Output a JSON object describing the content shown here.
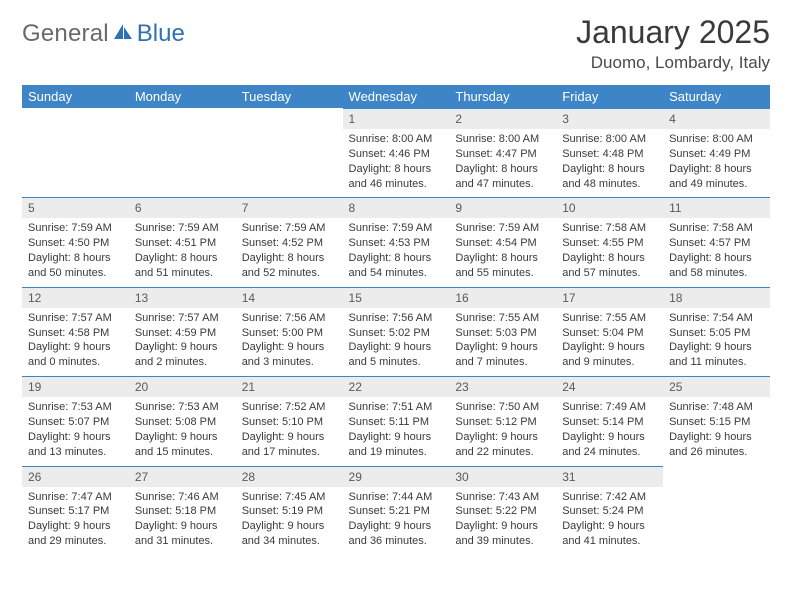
{
  "brand": {
    "part1": "General",
    "part2": "Blue"
  },
  "title": "January 2025",
  "location": "Duomo, Lombardy, Italy",
  "colors": {
    "header_bg": "#3d85c6",
    "header_fg": "#ffffff",
    "daynum_bg": "#ececec",
    "border": "#3d85c6",
    "brand_gray": "#6a6a6a",
    "brand_blue": "#2e72b5"
  },
  "weekdays": [
    "Sunday",
    "Monday",
    "Tuesday",
    "Wednesday",
    "Thursday",
    "Friday",
    "Saturday"
  ],
  "weeks": [
    [
      null,
      null,
      null,
      {
        "n": "1",
        "sr": "8:00 AM",
        "ss": "4:46 PM",
        "dh": "8",
        "dm": "46"
      },
      {
        "n": "2",
        "sr": "8:00 AM",
        "ss": "4:47 PM",
        "dh": "8",
        "dm": "47"
      },
      {
        "n": "3",
        "sr": "8:00 AM",
        "ss": "4:48 PM",
        "dh": "8",
        "dm": "48"
      },
      {
        "n": "4",
        "sr": "8:00 AM",
        "ss": "4:49 PM",
        "dh": "8",
        "dm": "49"
      }
    ],
    [
      {
        "n": "5",
        "sr": "7:59 AM",
        "ss": "4:50 PM",
        "dh": "8",
        "dm": "50"
      },
      {
        "n": "6",
        "sr": "7:59 AM",
        "ss": "4:51 PM",
        "dh": "8",
        "dm": "51"
      },
      {
        "n": "7",
        "sr": "7:59 AM",
        "ss": "4:52 PM",
        "dh": "8",
        "dm": "52"
      },
      {
        "n": "8",
        "sr": "7:59 AM",
        "ss": "4:53 PM",
        "dh": "8",
        "dm": "54"
      },
      {
        "n": "9",
        "sr": "7:59 AM",
        "ss": "4:54 PM",
        "dh": "8",
        "dm": "55"
      },
      {
        "n": "10",
        "sr": "7:58 AM",
        "ss": "4:55 PM",
        "dh": "8",
        "dm": "57"
      },
      {
        "n": "11",
        "sr": "7:58 AM",
        "ss": "4:57 PM",
        "dh": "8",
        "dm": "58"
      }
    ],
    [
      {
        "n": "12",
        "sr": "7:57 AM",
        "ss": "4:58 PM",
        "dh": "9",
        "dm": "0"
      },
      {
        "n": "13",
        "sr": "7:57 AM",
        "ss": "4:59 PM",
        "dh": "9",
        "dm": "2"
      },
      {
        "n": "14",
        "sr": "7:56 AM",
        "ss": "5:00 PM",
        "dh": "9",
        "dm": "3"
      },
      {
        "n": "15",
        "sr": "7:56 AM",
        "ss": "5:02 PM",
        "dh": "9",
        "dm": "5"
      },
      {
        "n": "16",
        "sr": "7:55 AM",
        "ss": "5:03 PM",
        "dh": "9",
        "dm": "7"
      },
      {
        "n": "17",
        "sr": "7:55 AM",
        "ss": "5:04 PM",
        "dh": "9",
        "dm": "9"
      },
      {
        "n": "18",
        "sr": "7:54 AM",
        "ss": "5:05 PM",
        "dh": "9",
        "dm": "11"
      }
    ],
    [
      {
        "n": "19",
        "sr": "7:53 AM",
        "ss": "5:07 PM",
        "dh": "9",
        "dm": "13"
      },
      {
        "n": "20",
        "sr": "7:53 AM",
        "ss": "5:08 PM",
        "dh": "9",
        "dm": "15"
      },
      {
        "n": "21",
        "sr": "7:52 AM",
        "ss": "5:10 PM",
        "dh": "9",
        "dm": "17"
      },
      {
        "n": "22",
        "sr": "7:51 AM",
        "ss": "5:11 PM",
        "dh": "9",
        "dm": "19"
      },
      {
        "n": "23",
        "sr": "7:50 AM",
        "ss": "5:12 PM",
        "dh": "9",
        "dm": "22"
      },
      {
        "n": "24",
        "sr": "7:49 AM",
        "ss": "5:14 PM",
        "dh": "9",
        "dm": "24"
      },
      {
        "n": "25",
        "sr": "7:48 AM",
        "ss": "5:15 PM",
        "dh": "9",
        "dm": "26"
      }
    ],
    [
      {
        "n": "26",
        "sr": "7:47 AM",
        "ss": "5:17 PM",
        "dh": "9",
        "dm": "29"
      },
      {
        "n": "27",
        "sr": "7:46 AM",
        "ss": "5:18 PM",
        "dh": "9",
        "dm": "31"
      },
      {
        "n": "28",
        "sr": "7:45 AM",
        "ss": "5:19 PM",
        "dh": "9",
        "dm": "34"
      },
      {
        "n": "29",
        "sr": "7:44 AM",
        "ss": "5:21 PM",
        "dh": "9",
        "dm": "36"
      },
      {
        "n": "30",
        "sr": "7:43 AM",
        "ss": "5:22 PM",
        "dh": "9",
        "dm": "39"
      },
      {
        "n": "31",
        "sr": "7:42 AM",
        "ss": "5:24 PM",
        "dh": "9",
        "dm": "41"
      },
      null
    ]
  ],
  "labels": {
    "sunrise": "Sunrise:",
    "sunset": "Sunset:",
    "daylight": "Daylight:",
    "hours": "hours",
    "and": "and",
    "minutes": "minutes."
  }
}
